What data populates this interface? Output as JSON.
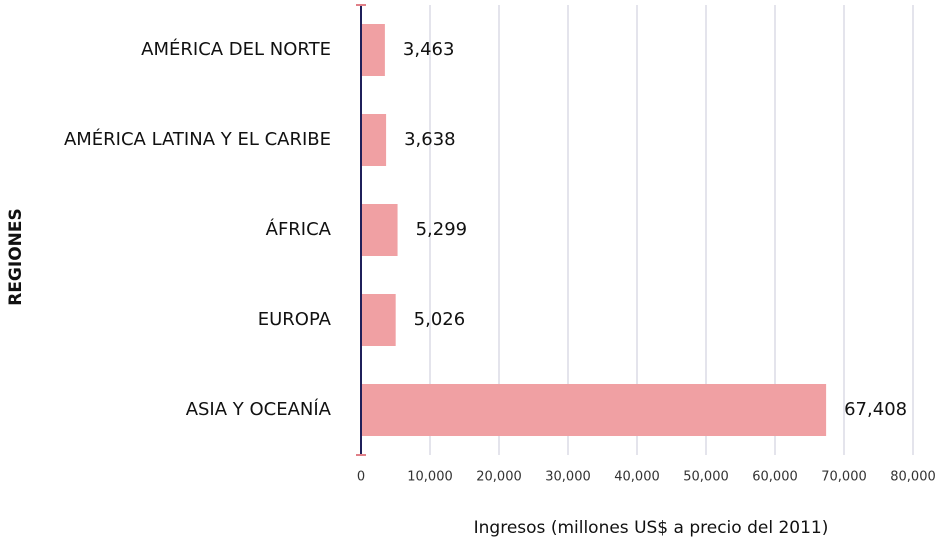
{
  "chart_data": {
    "type": "bar",
    "orientation": "horizontal",
    "categories": [
      "AMÉRICA DEL NORTE",
      "AMÉRICA LATINA Y EL CARIBE",
      "ÁFRICA",
      "EUROPA",
      "ASIA Y OCEANÍA"
    ],
    "values": [
      3463,
      3638,
      5299,
      5026,
      67408
    ],
    "value_labels": [
      "3,463",
      "3,638",
      "5,299",
      "5,026",
      "67,408"
    ],
    "color": "#f0a0a3",
    "xlim": [
      0,
      80000
    ],
    "xticks": [
      0,
      {
        "value": 10000,
        "label": "10,000"
      },
      {
        "value": 20000,
        "label": "20,000"
      },
      {
        "value": 30000,
        "label": "30,000"
      },
      {
        "value": 40000,
        "label": "40,000"
      },
      {
        "value": 50000,
        "label": "50,000"
      },
      {
        "value": 60000,
        "label": "60,000"
      },
      {
        "value": 70000,
        "label": "70,000"
      },
      {
        "value": 80000,
        "label": "80,000"
      }
    ],
    "grid": true,
    "x_label": "Ingresos (millones US$ a precio del 2011)",
    "y_label": "REGIONES"
  }
}
